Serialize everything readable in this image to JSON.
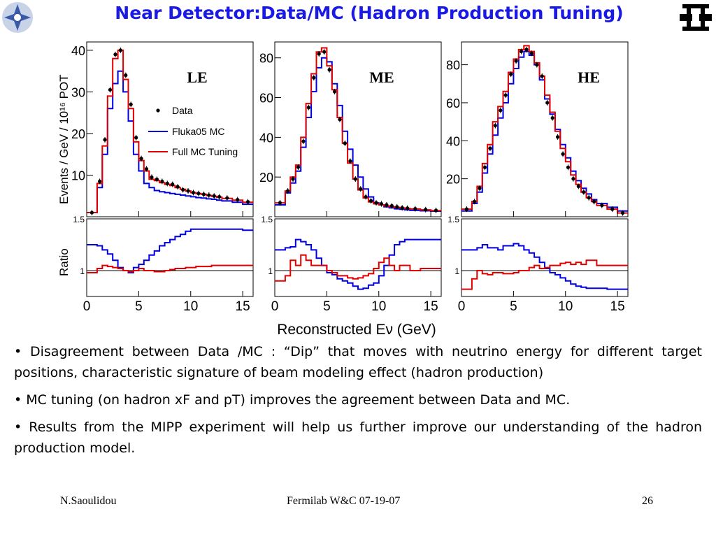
{
  "slide": {
    "title": "Near Detector:Data/MC (Hadron Production Tuning)",
    "logo_left_icon": "nuclear-star-logo-icon",
    "logo_right_icon": "fermilab-logo-icon"
  },
  "chart_data": {
    "type": "histogram",
    "y_label": "Events / GeV / 10¹⁶ POT",
    "ratio_y_label": "Ratio",
    "x_label": "Reconstructed Eν (GeV)",
    "x_range": [
      0,
      16
    ],
    "x_ticks": [
      "0",
      "5",
      "10",
      "15"
    ],
    "ratio_ticks": [
      "1.5",
      "1"
    ],
    "ratio_range": [
      0.75,
      1.5
    ],
    "colors": {
      "data": "#000000",
      "fluka": "#0000e0",
      "tuned": "#e00000"
    },
    "legend": {
      "placement": "upper-right of LE panel",
      "entries": [
        {
          "series": "data",
          "label": "Data"
        },
        {
          "series": "fluka",
          "label": "Fluka05 MC"
        },
        {
          "series": "tuned",
          "label": "Full MC Tuning"
        }
      ]
    },
    "bin_edges": [
      0,
      1,
      1.5,
      2,
      2.5,
      3,
      3.5,
      4,
      4.5,
      5,
      5.5,
      6,
      6.5,
      7,
      7.5,
      8,
      8.5,
      9,
      9.5,
      10,
      10.5,
      11,
      11.5,
      12,
      12.5,
      13,
      14,
      15,
      16
    ],
    "panels": [
      {
        "label": "LE",
        "y_range": [
          0,
          42
        ],
        "y_ticks": [
          10,
          20,
          30,
          40
        ],
        "data": [
          1,
          8.5,
          18.5,
          30.5,
          39,
          40,
          34,
          27,
          19,
          14,
          11.5,
          9.5,
          9,
          8.5,
          8,
          7.8,
          7.2,
          6.5,
          6.2,
          5.8,
          5.6,
          5.4,
          5.2,
          5,
          4.8,
          4.5,
          4.1,
          3.6
        ],
        "fluka": [
          1,
          7,
          15,
          26,
          32,
          35,
          30,
          23,
          15,
          11,
          8,
          7,
          6.3,
          6,
          5.8,
          5.6,
          5.4,
          5.2,
          5,
          4.8,
          4.6,
          4.5,
          4.3,
          4.2,
          4,
          3.8,
          3.5,
          3
        ],
        "tuned": [
          1,
          8,
          17,
          29,
          38,
          40,
          33,
          26,
          18,
          13.5,
          11,
          9,
          8.7,
          8.2,
          7.8,
          7.5,
          7,
          6.6,
          6.2,
          5.8,
          5.6,
          5.4,
          5.1,
          4.9,
          4.7,
          4.4,
          4,
          3.5
        ],
        "ratio_fluka": [
          1.25,
          1.24,
          1.2,
          1.16,
          1.1,
          1.03,
          1.0,
          0.98,
          1.03,
          1.06,
          1.1,
          1.15,
          1.19,
          1.24,
          1.27,
          1.3,
          1.33,
          1.35,
          1.38,
          1.4,
          1.4,
          1.4,
          1.4,
          1.4,
          1.4,
          1.4,
          1.4,
          1.39
        ],
        "ratio_tuned": [
          0.98,
          1.02,
          1.05,
          1.04,
          1.03,
          1.02,
          1.0,
          0.99,
          1.0,
          1.02,
          1.0,
          1.0,
          0.99,
          0.99,
          1.0,
          1.01,
          1.02,
          1.02,
          1.03,
          1.03,
          1.04,
          1.04,
          1.04,
          1.05,
          1.05,
          1.05,
          1.05,
          1.05
        ]
      },
      {
        "label": "ME",
        "y_range": [
          0,
          88
        ],
        "y_ticks": [
          20,
          40,
          60,
          80
        ],
        "data": [
          7,
          13,
          19,
          25,
          38,
          55,
          70,
          82,
          83,
          74,
          63,
          49,
          37,
          28,
          19,
          14,
          10,
          8,
          7,
          6.5,
          6,
          5.5,
          5,
          4.5,
          4.3,
          4,
          3.6,
          3.2
        ],
        "fluka": [
          6,
          12,
          17,
          23,
          35,
          50,
          63,
          75,
          80,
          78,
          67,
          56,
          43,
          34,
          26,
          20,
          14,
          10,
          7,
          6,
          5,
          4.5,
          4,
          3.8,
          3.5,
          3.2,
          3,
          2.8
        ],
        "tuned": [
          7,
          13,
          20,
          26,
          40,
          57,
          72,
          83,
          85,
          76,
          64,
          50,
          37,
          27,
          19,
          13.5,
          9.5,
          7.5,
          6.5,
          6,
          5.5,
          5,
          4.7,
          4.4,
          4.2,
          3.9,
          3.5,
          3.1
        ],
        "ratio_fluka": [
          1.2,
          1.22,
          1.23,
          1.3,
          1.28,
          1.25,
          1.2,
          1.12,
          1.05,
          0.98,
          0.96,
          0.92,
          0.9,
          0.88,
          0.85,
          0.82,
          0.83,
          0.86,
          0.88,
          0.95,
          1.05,
          1.15,
          1.25,
          1.28,
          1.3,
          1.3,
          1.3,
          1.3
        ],
        "ratio_tuned": [
          0.9,
          0.95,
          1.1,
          1.05,
          1.15,
          1.1,
          1.05,
          1.05,
          1.05,
          1.0,
          0.98,
          0.95,
          0.95,
          0.93,
          0.92,
          0.93,
          0.95,
          0.97,
          1.02,
          1.08,
          1.12,
          1.05,
          1.0,
          1.05,
          1.05,
          1.0,
          1.02,
          1.02
        ]
      },
      {
        "label": "HE",
        "y_range": [
          0,
          92
        ],
        "y_ticks": [
          20,
          40,
          60,
          80
        ],
        "data": [
          4,
          8,
          15,
          26,
          36,
          48,
          56,
          64,
          75,
          82,
          87,
          88,
          86,
          80,
          74,
          60,
          52,
          42,
          33,
          26,
          20,
          16,
          13,
          10,
          8,
          6,
          4,
          2
        ],
        "fluka": [
          3,
          7,
          13,
          23,
          33,
          43,
          52,
          60,
          70,
          78,
          84,
          87,
          85,
          80,
          72,
          62,
          54,
          46,
          38,
          31,
          24,
          19,
          15,
          12,
          9,
          7,
          5,
          3
        ],
        "tuned": [
          4,
          8,
          16,
          28,
          38,
          50,
          58,
          66,
          76,
          83,
          88,
          90,
          87,
          81,
          74,
          64,
          55,
          45,
          36,
          29,
          22,
          17,
          13,
          10,
          8,
          6,
          4,
          2
        ],
        "ratio_fluka": [
          1.2,
          1.2,
          1.22,
          1.25,
          1.22,
          1.22,
          1.2,
          1.24,
          1.24,
          1.26,
          1.24,
          1.2,
          1.17,
          1.13,
          1.08,
          1.02,
          0.98,
          0.96,
          0.93,
          0.9,
          0.87,
          0.85,
          0.84,
          0.83,
          0.83,
          0.83,
          0.82,
          0.82
        ],
        "ratio_tuned": [
          0.82,
          0.92,
          1.0,
          0.97,
          0.96,
          0.98,
          0.98,
          0.97,
          0.97,
          0.98,
          1.0,
          1.0,
          1.03,
          1.05,
          1.02,
          1.03,
          1.05,
          1.05,
          1.07,
          1.08,
          1.06,
          1.08,
          1.06,
          1.1,
          1.1,
          1.05,
          1.05,
          1.05
        ]
      }
    ]
  },
  "bullets": [
    "• Disagreement between Data /MC : “Dip” that moves with neutrino energy for different target positions, characteristic signature of beam modeling effect (hadron production)",
    "• MC tuning (on hadron xF and pT) improves the agreement between Data and MC.",
    "• Results from the MIPP experiment will help us further improve our understanding of the hadron production model."
  ],
  "footer": {
    "left": "N.Saoulidou",
    "center": "Fermilab W&C  07-19-07",
    "right": "26"
  }
}
